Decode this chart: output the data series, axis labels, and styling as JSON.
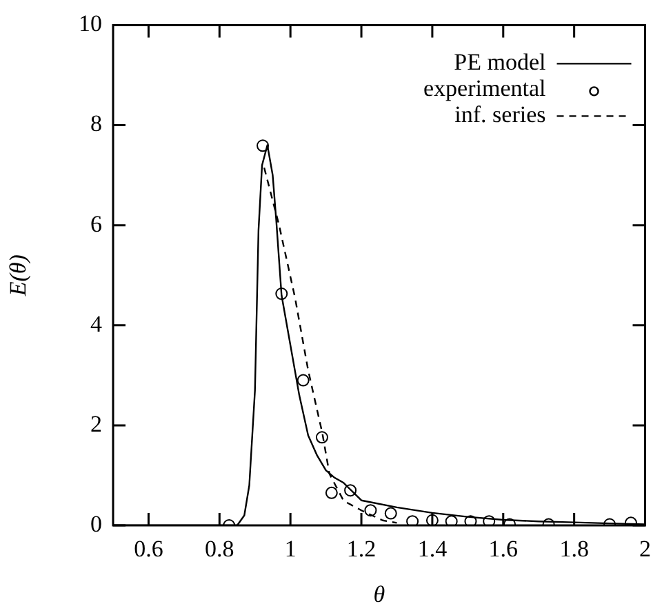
{
  "chart_data": {
    "type": "line",
    "xlabel": "θ",
    "ylabel": "E(θ)",
    "xlim": [
      0.5,
      2
    ],
    "ylim": [
      0,
      10
    ],
    "xticks": [
      0.6,
      0.8,
      1,
      1.2,
      1.4,
      1.6,
      1.8,
      2
    ],
    "yticks": [
      0,
      2,
      4,
      6,
      8,
      10
    ],
    "legend": "top right",
    "grid": false,
    "series": [
      {
        "name": "PE model",
        "color": "#000000",
        "line_style": "solid",
        "marker": "none",
        "x": [
          0.5,
          0.8,
          0.85,
          0.87,
          0.884,
          0.9,
          0.91,
          0.92,
          0.935,
          0.95,
          0.96,
          0.975,
          1.0,
          1.025,
          1.05,
          1.075,
          1.1,
          1.125,
          1.15,
          1.2,
          1.3,
          1.4,
          1.5,
          1.6,
          1.7,
          1.8,
          1.9,
          2.0
        ],
        "values": [
          0,
          0,
          0,
          0.2,
          0.8,
          2.7,
          5.9,
          7.2,
          7.6,
          7.0,
          6.1,
          4.6,
          3.6,
          2.6,
          1.8,
          1.4,
          1.1,
          0.95,
          0.85,
          0.5,
          0.36,
          0.25,
          0.17,
          0.11,
          0.08,
          0.06,
          0.04,
          0.02
        ]
      },
      {
        "name": "experimental",
        "type": "scatter",
        "color": "#000000",
        "marker": "circle",
        "x": [
          0.827,
          0.922,
          0.975,
          1.036,
          1.089,
          1.116,
          1.169,
          1.226,
          1.283,
          1.344,
          1.4,
          1.454,
          1.508,
          1.56,
          1.618,
          1.728,
          1.9,
          1.96
        ],
        "values": [
          0,
          7.59,
          4.63,
          2.9,
          1.76,
          0.65,
          0.7,
          0.3,
          0.24,
          0.08,
          0.1,
          0.08,
          0.08,
          0.08,
          0.02,
          0.02,
          0.02,
          0.05
        ]
      },
      {
        "name": "inf. series",
        "color": "#000000",
        "line_style": "dashed",
        "marker": "none",
        "x": [
          0.926,
          0.968,
          1.013,
          1.05,
          1.09,
          1.11,
          1.15,
          1.2,
          1.26,
          1.3
        ],
        "values": [
          7.15,
          6.0,
          4.55,
          3.1,
          1.84,
          1.03,
          0.49,
          0.3,
          0.1,
          0.05
        ]
      }
    ]
  }
}
